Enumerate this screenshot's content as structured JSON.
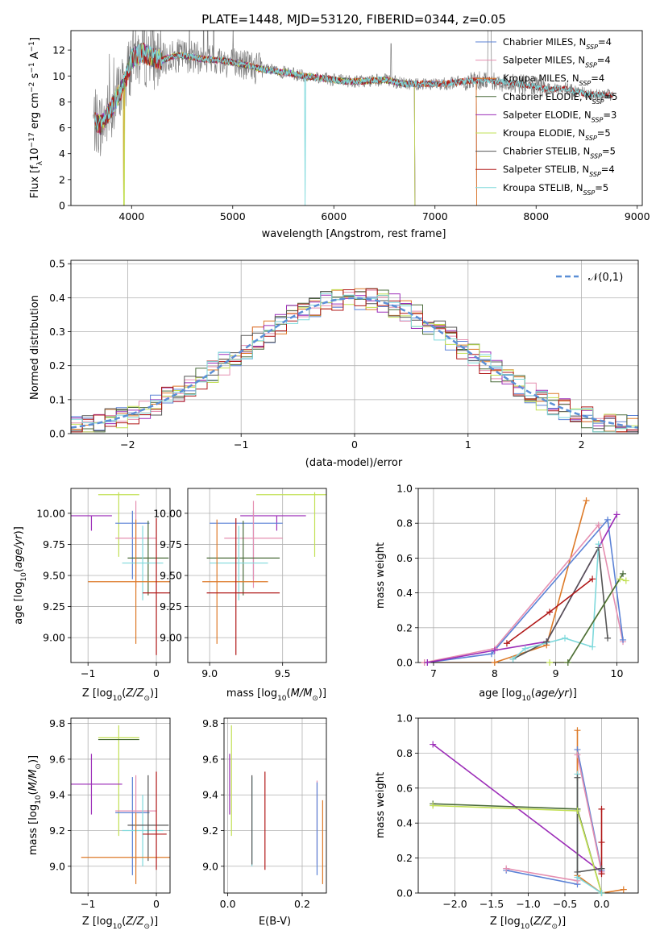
{
  "colors": {
    "chabrier_miles": "#5b82d6",
    "salpeter_miles": "#e58fb0",
    "kroupa_miles": "#dd7a28",
    "chabrier_elodie": "#4a6b3a",
    "salpeter_elodie": "#9c2db8",
    "kroupa_elodie": "#c2e054",
    "chabrier_stelib": "#555555",
    "salpeter_stelib": "#b01818",
    "kroupa_stelib": "#7fd9dc",
    "data": "#808080",
    "normal": "#5b8fd6",
    "grid": "#b0b0b0"
  },
  "chart_data": [
    {
      "id": "spectrum",
      "type": "line",
      "title": "PLATE=1448, MJD=53120, FIBERID=0344, z=0.05",
      "xlabel": "wavelength [Angstrom, rest frame]",
      "ylabel_parts": [
        "Flux [f",
        "λ",
        "10",
        "−17",
        " erg cm",
        "−2",
        " s",
        "−1",
        " A",
        "−1",
        "]"
      ],
      "xlim": [
        3400,
        9050
      ],
      "ylim": [
        0,
        13.5
      ],
      "xticks": [
        4000,
        5000,
        6000,
        7000,
        8000,
        9000
      ],
      "yticks": [
        0,
        2,
        4,
        6,
        8,
        10,
        12
      ],
      "legend": {
        "position": "upper right",
        "entries": [
          {
            "name": "Chabrier MILES",
            "n": "4"
          },
          {
            "name": "Salpeter MILES",
            "n": "4"
          },
          {
            "name": "Kroupa MILES",
            "n": "4"
          },
          {
            "name": "Chabrier ELODIE",
            "n": "5"
          },
          {
            "name": "Salpeter ELODIE",
            "n": "3"
          },
          {
            "name": "Kroupa ELODIE",
            "n": "5"
          },
          {
            "name": "Chabrier STELIB",
            "n": "5"
          },
          {
            "name": "Salpeter STELIB",
            "n": "4"
          },
          {
            "name": "Kroupa STELIB",
            "n": "5"
          }
        ],
        "n_label": "N",
        "n_sub": "SSP"
      },
      "continuum": [
        [
          3620,
          6.5
        ],
        [
          3700,
          6.2
        ],
        [
          3800,
          7.5
        ],
        [
          3900,
          9.0
        ],
        [
          3950,
          10.0
        ],
        [
          4000,
          11.3
        ],
        [
          4100,
          11.8
        ],
        [
          4200,
          11.5
        ],
        [
          4300,
          11.2
        ],
        [
          4400,
          11.5
        ],
        [
          4500,
          11.6
        ],
        [
          4700,
          11.3
        ],
        [
          4900,
          11.2
        ],
        [
          5100,
          10.9
        ],
        [
          5300,
          10.5
        ],
        [
          5500,
          10.3
        ],
        [
          5700,
          10.0
        ],
        [
          5900,
          9.8
        ],
        [
          6100,
          9.6
        ],
        [
          6300,
          9.6
        ],
        [
          6500,
          9.7
        ],
        [
          6700,
          9.4
        ],
        [
          6900,
          9.4
        ],
        [
          7100,
          9.4
        ],
        [
          7300,
          9.6
        ],
        [
          7500,
          9.7
        ],
        [
          7700,
          9.5
        ],
        [
          7900,
          9.3
        ],
        [
          8100,
          9.0
        ],
        [
          8300,
          9.0
        ],
        [
          8500,
          8.6
        ],
        [
          8700,
          8.5
        ],
        [
          8760,
          8.5
        ]
      ],
      "model_end": {
        "miles": 7410,
        "elodie": 6800,
        "stelib": 8760
      }
    },
    {
      "id": "residuals",
      "type": "histogram",
      "xlabel": "(data-model)/error",
      "ylabel": "Normed distribution",
      "xlim": [
        -2.5,
        2.5
      ],
      "ylim": [
        0,
        0.51
      ],
      "xticks": [
        -2,
        -1,
        0,
        1,
        2
      ],
      "yticks": [
        0.0,
        0.1,
        0.2,
        0.3,
        0.4,
        0.5
      ],
      "bin_width": 0.1,
      "legend": {
        "position": "upper right",
        "label": "𝒩(0,1)"
      }
    },
    {
      "id": "age_vs_Z",
      "type": "scatter",
      "xlabel": "Z [log10(Z/Z⊙)]",
      "ylabel": "age  [log10(age/yr)]",
      "xlim": [
        -1.25,
        0.2
      ],
      "ylim": [
        8.8,
        10.2
      ],
      "xticks": [
        -1,
        0
      ],
      "yticks": [
        9.0,
        9.25,
        9.5,
        9.75,
        10.0
      ],
      "points": [
        {
          "model": "kroupa_elodie",
          "x": -0.55,
          "xerr": [
            0.3,
            0.3
          ],
          "y": 10.15,
          "yerr": [
            0.5,
            0.02
          ]
        },
        {
          "model": "salpeter_elodie",
          "x": -0.95,
          "xerr": [
            0.3,
            0.3
          ],
          "y": 9.98,
          "yerr": [
            0.12,
            0.0
          ]
        },
        {
          "model": "chabrier_miles",
          "x": -0.35,
          "xerr": [
            0.25,
            0.25
          ],
          "y": 9.92,
          "yerr": [
            0.45,
            0.1
          ]
        },
        {
          "model": "salpeter_miles",
          "x": -0.3,
          "xerr": [
            0.3,
            0.3
          ],
          "y": 9.8,
          "yerr": [
            0.4,
            0.3
          ]
        },
        {
          "model": "chabrier_elodie",
          "x": -0.12,
          "xerr": [
            0.3,
            0.3
          ],
          "y": 9.64,
          "yerr": [
            0.3,
            0.3
          ]
        },
        {
          "model": "kroupa_stelib",
          "x": -0.2,
          "xerr": [
            0.3,
            0.3
          ],
          "y": 9.6,
          "yerr": [
            0.3,
            0.3
          ]
        },
        {
          "model": "kroupa_miles",
          "x": -0.3,
          "xerr": [
            0.7,
            0.6
          ],
          "y": 9.45,
          "yerr": [
            0.5,
            0.5
          ]
        },
        {
          "model": "salpeter_stelib",
          "x": 0.0,
          "xerr": [
            0.2,
            0.2
          ],
          "y": 9.36,
          "yerr": [
            0.5,
            0.6
          ]
        }
      ]
    },
    {
      "id": "age_vs_mass",
      "type": "scatter",
      "xlabel": "mass [log10(M/M⊙)]",
      "ylabel": "",
      "xlim": [
        8.85,
        9.8
      ],
      "ylim": [
        8.8,
        10.2
      ],
      "xticks": [
        9.0,
        9.5
      ],
      "yticks": [
        9.0,
        9.25,
        9.5,
        9.75,
        10.0
      ],
      "points": [
        {
          "model": "kroupa_elodie",
          "x": 9.72,
          "xerr": [
            0.4,
            0.25
          ],
          "y": 10.15,
          "yerr": [
            0.5,
            0.02
          ]
        },
        {
          "model": "salpeter_elodie",
          "x": 9.46,
          "xerr": [
            0.25,
            0.2
          ],
          "y": 9.98,
          "yerr": [
            0.12,
            0.0
          ]
        },
        {
          "model": "chabrier_miles",
          "x": 9.3,
          "xerr": [
            0.3,
            0.2
          ],
          "y": 9.92,
          "yerr": [
            0.45,
            0.1
          ]
        },
        {
          "model": "salpeter_miles",
          "x": 9.3,
          "xerr": [
            0.2,
            0.2
          ],
          "y": 9.8,
          "yerr": [
            0.4,
            0.3
          ]
        },
        {
          "model": "chabrier_elodie",
          "x": 9.23,
          "xerr": [
            0.25,
            0.25
          ],
          "y": 9.64,
          "yerr": [
            0.3,
            0.3
          ]
        },
        {
          "model": "kroupa_stelib",
          "x": 9.2,
          "xerr": [
            0.2,
            0.2
          ],
          "y": 9.6,
          "yerr": [
            0.3,
            0.3
          ]
        },
        {
          "model": "kroupa_miles",
          "x": 9.05,
          "xerr": [
            0.1,
            0.35
          ],
          "y": 9.45,
          "yerr": [
            0.5,
            0.5
          ]
        },
        {
          "model": "salpeter_stelib",
          "x": 9.18,
          "xerr": [
            0.2,
            0.3
          ],
          "y": 9.36,
          "yerr": [
            0.5,
            0.6
          ]
        }
      ]
    },
    {
      "id": "weight_vs_age",
      "type": "line",
      "xlabel": "age  [log10(age/yr)]",
      "ylabel": "mass weight",
      "xlim": [
        6.75,
        10.35
      ],
      "ylim": [
        0,
        1.0
      ],
      "xticks": [
        7,
        8,
        9,
        10
      ],
      "yticks": [
        0.0,
        0.2,
        0.4,
        0.6,
        0.8,
        1.0
      ],
      "series": [
        {
          "model": "kroupa_miles",
          "x": [
            6.85,
            8.0,
            8.85,
            9.5
          ],
          "y": [
            0.0,
            0.0,
            0.1,
            0.93
          ]
        },
        {
          "model": "salpeter_miles",
          "x": [
            6.85,
            8.0,
            9.7,
            10.1
          ],
          "y": [
            0.0,
            0.08,
            0.79,
            0.12
          ]
        },
        {
          "model": "chabrier_miles",
          "x": [
            6.9,
            7.95,
            9.85,
            10.1
          ],
          "y": [
            0.0,
            0.05,
            0.82,
            0.13
          ]
        },
        {
          "model": "salpeter_elodie",
          "x": [
            6.9,
            8.0,
            8.85,
            10.0
          ],
          "y": [
            0.0,
            0.07,
            0.12,
            0.85
          ]
        },
        {
          "model": "chabrier_stelib",
          "x": [
            8.3,
            8.85,
            9.7,
            9.85
          ],
          "y": [
            0.02,
            0.12,
            0.66,
            0.14
          ]
        },
        {
          "model": "salpeter_stelib",
          "x": [
            8.2,
            8.9,
            9.6
          ],
          "y": [
            0.11,
            0.29,
            0.48
          ]
        },
        {
          "model": "kroupa_stelib",
          "x": [
            8.3,
            8.5,
            9.15,
            9.6,
            9.7
          ],
          "y": [
            0.02,
            0.08,
            0.14,
            0.09,
            0.68
          ]
        },
        {
          "model": "kroupa_elodie",
          "x": [
            8.9,
            9.2,
            10.05,
            10.15
          ],
          "y": [
            0.0,
            0.0,
            0.48,
            0.47
          ]
        },
        {
          "model": "chabrier_elodie",
          "x": [
            9.2,
            10.1
          ],
          "y": [
            0.0,
            0.51
          ]
        }
      ]
    },
    {
      "id": "mass_vs_Z",
      "type": "scatter",
      "xlabel": "Z [log10(Z/Z⊙)]",
      "ylabel": "mass [log10(M/M⊙)]",
      "xlim": [
        -1.25,
        0.2
      ],
      "ylim": [
        8.85,
        9.83
      ],
      "xticks": [
        -1,
        0
      ],
      "yticks": [
        9.0,
        9.2,
        9.4,
        9.6,
        9.8
      ],
      "points": [
        {
          "model": "kroupa_elodie",
          "x": -0.55,
          "xerr": [
            0.3,
            0.3
          ],
          "y": 9.72,
          "yerr": [
            0.55,
            0.07
          ]
        },
        {
          "model": "chabrier_elodie",
          "x": -0.55,
          "xerr": [
            0.3,
            0.3
          ],
          "y": 9.71,
          "yerr": [
            0.0,
            0.0
          ]
        },
        {
          "model": "salpeter_elodie",
          "x": -0.95,
          "xerr": [
            0.3,
            0.45
          ],
          "y": 9.46,
          "yerr": [
            0.17,
            0.17
          ]
        },
        {
          "model": "chabrier_miles",
          "x": -0.35,
          "xerr": [
            0.25,
            0.25
          ],
          "y": 9.3,
          "yerr": [
            0.35,
            0.2
          ]
        },
        {
          "model": "salpeter_miles",
          "x": -0.3,
          "xerr": [
            0.3,
            0.3
          ],
          "y": 9.31,
          "yerr": [
            0.3,
            0.2
          ]
        },
        {
          "model": "kroupa_stelib",
          "x": -0.2,
          "xerr": [
            0.3,
            0.3
          ],
          "y": 9.2,
          "yerr": [
            0.2,
            0.2
          ]
        },
        {
          "model": "chabrier_stelib",
          "x": -0.12,
          "xerr": [
            0.3,
            0.3
          ],
          "y": 9.23,
          "yerr": [
            0.2,
            0.28
          ]
        },
        {
          "model": "kroupa_miles",
          "x": -0.3,
          "xerr": [
            0.8,
            0.6
          ],
          "y": 9.05,
          "yerr": [
            0.15,
            0.25
          ]
        },
        {
          "model": "salpeter_stelib",
          "x": 0.0,
          "xerr": [
            0.2,
            0.15
          ],
          "y": 9.18,
          "yerr": [
            0.2,
            0.35
          ]
        }
      ]
    },
    {
      "id": "mass_vs_ebv",
      "type": "scatter",
      "xlabel": "E(B-V)",
      "ylabel": "",
      "xlim": [
        -0.01,
        0.265
      ],
      "ylim": [
        8.85,
        9.83
      ],
      "xticks": [
        0.0,
        0.2
      ],
      "yticks": [
        9.0,
        9.2,
        9.4,
        9.6,
        9.8
      ],
      "points": [
        {
          "model": "kroupa_elodie",
          "x": 0.01,
          "y": 9.72,
          "yerr": [
            0.55,
            0.07
          ]
        },
        {
          "model": "salpeter_elodie",
          "x": 0.005,
          "y": 9.46,
          "yerr": [
            0.17,
            0.17
          ]
        },
        {
          "model": "chabrier_elodie",
          "x": 0.01,
          "y": 9.71,
          "yerr": [
            0.0,
            0.0
          ]
        },
        {
          "model": "kroupa_stelib",
          "x": 0.065,
          "y": 9.2,
          "yerr": [
            0.2,
            0.3
          ]
        },
        {
          "model": "chabrier_stelib",
          "x": 0.065,
          "y": 9.23,
          "yerr": [
            0.22,
            0.28
          ]
        },
        {
          "model": "salpeter_stelib",
          "x": 0.1,
          "y": 9.18,
          "yerr": [
            0.2,
            0.35
          ]
        },
        {
          "model": "salpeter_miles",
          "x": 0.24,
          "y": 9.31,
          "yerr": [
            0.3,
            0.17
          ]
        },
        {
          "model": "chabrier_miles",
          "x": 0.24,
          "y": 9.3,
          "yerr": [
            0.35,
            0.17
          ]
        },
        {
          "model": "kroupa_miles",
          "x": 0.255,
          "y": 9.05,
          "yerr": [
            0.15,
            0.32
          ]
        }
      ]
    },
    {
      "id": "weight_vs_Z",
      "type": "line",
      "xlabel": "Z [log10(Z/Z⊙)]",
      "ylabel": "mass weight",
      "xlim": [
        -2.5,
        0.5
      ],
      "ylim": [
        0,
        1.0
      ],
      "xticks": [
        -2.0,
        -1.5,
        -1.0,
        -0.5,
        0.0
      ],
      "yticks": [
        0.0,
        0.2,
        0.4,
        0.6,
        0.8,
        1.0
      ],
      "series": [
        {
          "model": "salpeter_elodie",
          "x": [
            -2.3,
            0.0
          ],
          "y": [
            0.85,
            0.12
          ]
        },
        {
          "model": "chabrier_elodie",
          "x": [
            -2.3,
            -0.33,
            0.0
          ],
          "y": [
            0.51,
            0.48,
            0.0
          ]
        },
        {
          "model": "kroupa_elodie",
          "x": [
            -2.3,
            -0.33,
            0.0
          ],
          "y": [
            0.5,
            0.47,
            0.0
          ]
        },
        {
          "model": "chabrier_miles",
          "x": [
            -1.3,
            -0.33,
            -0.33,
            0.0
          ],
          "y": [
            0.13,
            0.05,
            0.82,
            0.13
          ]
        },
        {
          "model": "salpeter_miles",
          "x": [
            -1.3,
            -0.33,
            -0.33,
            0.0
          ],
          "y": [
            0.14,
            0.07,
            0.79,
            0.12
          ]
        },
        {
          "model": "kroupa_miles",
          "x": [
            -0.33,
            -0.33,
            0.0,
            0.3
          ],
          "y": [
            0.93,
            0.1,
            0.0,
            0.02
          ]
        },
        {
          "model": "kroupa_stelib",
          "x": [
            -0.33,
            -0.33,
            0.0
          ],
          "y": [
            0.68,
            0.09,
            0.0
          ]
        },
        {
          "model": "chabrier_stelib",
          "x": [
            -0.33,
            -0.33,
            0.0
          ],
          "y": [
            0.66,
            0.12,
            0.14
          ]
        },
        {
          "model": "salpeter_stelib",
          "x": [
            0.0,
            0.0,
            0.0
          ],
          "y": [
            0.48,
            0.29,
            0.11
          ]
        }
      ]
    }
  ]
}
